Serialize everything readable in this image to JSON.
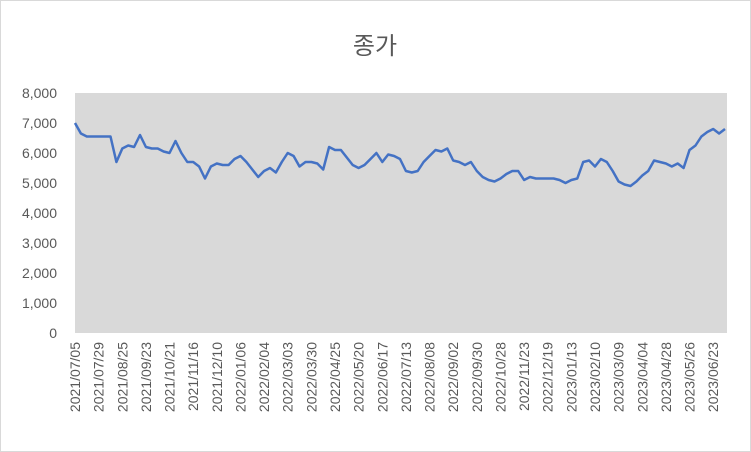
{
  "chart_data": {
    "type": "line",
    "title": "종가",
    "categories": [
      "2021/07/05",
      null,
      null,
      null,
      "2021/07/29",
      null,
      null,
      null,
      "2021/08/25",
      null,
      null,
      null,
      "2021/09/23",
      null,
      null,
      null,
      "2021/10/21",
      null,
      null,
      null,
      "2021/11/16",
      null,
      null,
      null,
      "2021/12/10",
      null,
      null,
      null,
      "2022/01/06",
      null,
      null,
      null,
      "2022/02/04",
      null,
      null,
      null,
      "2022/03/03",
      null,
      null,
      null,
      "2022/03/30",
      null,
      null,
      null,
      "2022/04/25",
      null,
      null,
      null,
      "2022/05/20",
      null,
      null,
      null,
      "2022/06/17",
      null,
      null,
      null,
      "2022/07/13",
      null,
      null,
      null,
      "2022/08/08",
      null,
      null,
      null,
      "2022/09/02",
      null,
      null,
      null,
      "2022/09/30",
      null,
      null,
      null,
      "2022/10/28",
      null,
      null,
      null,
      "2022/11/23",
      null,
      null,
      null,
      "2022/12/19",
      null,
      null,
      null,
      "2023/01/13",
      null,
      null,
      null,
      "2023/02/10",
      null,
      null,
      null,
      "2023/03/09",
      null,
      null,
      null,
      "2023/04/04",
      null,
      null,
      null,
      "2023/04/28",
      null,
      null,
      null,
      "2023/05/26",
      null,
      null,
      null,
      "2023/06/23",
      null,
      null
    ],
    "series": [
      {
        "color": "#4472c4",
        "values": [
          7000,
          6650,
          6550,
          6550,
          6550,
          6550,
          6550,
          5700,
          6150,
          6250,
          6200,
          6600,
          6200,
          6150,
          6150,
          6050,
          6000,
          6400,
          6000,
          5700,
          5700,
          5550,
          5150,
          5550,
          5650,
          5600,
          5600,
          5800,
          5900,
          5700,
          5450,
          5200,
          5400,
          5500,
          5350,
          5700,
          6000,
          5900,
          5550,
          5700,
          5700,
          5650,
          5450,
          6200,
          6100,
          6100,
          5850,
          5600,
          5500,
          5600,
          5800,
          6000,
          5700,
          5950,
          5900,
          5800,
          5400,
          5350,
          5400,
          5700,
          5900,
          6100,
          6050,
          6150,
          5750,
          5700,
          5600,
          5700,
          5400,
          5200,
          5100,
          5050,
          5150,
          5300,
          5400,
          5400,
          5100,
          5200,
          5150,
          5150,
          5150,
          5150,
          5100,
          5000,
          5100,
          5150,
          5700,
          5750,
          5550,
          5800,
          5700,
          5400,
          5050,
          4950,
          4900,
          5050,
          5250,
          5400,
          5750,
          5700,
          5650,
          5550,
          5650,
          5500,
          6100,
          6250,
          6550,
          6700,
          6800,
          6650,
          6800
        ]
      }
    ],
    "ylim": [
      0,
      8000
    ],
    "yticks": [
      0,
      {
        "value": 1000,
        "label": "1,000"
      },
      {
        "value": 2000,
        "label": "2,000"
      },
      {
        "value": 3000,
        "label": "3,000"
      },
      {
        "value": 4000,
        "label": "4,000"
      },
      {
        "value": 5000,
        "label": "5,000"
      },
      {
        "value": 6000,
        "label": "6,000"
      },
      {
        "value": 7000,
        "label": "7,000"
      },
      {
        "value": 8000,
        "label": "8,000"
      }
    ],
    "plot_background": "#d9d9d9"
  }
}
